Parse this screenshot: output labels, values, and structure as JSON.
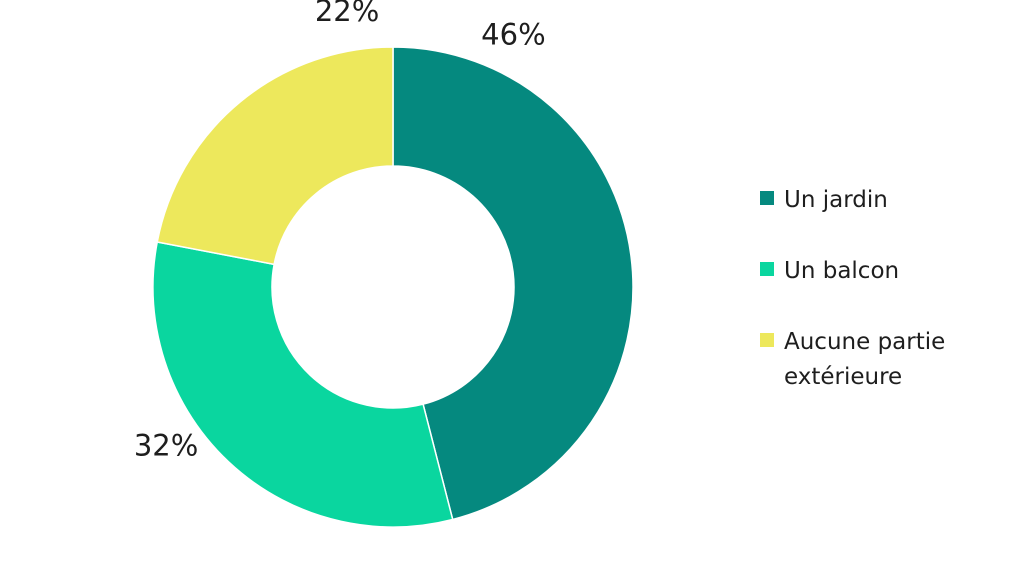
{
  "chart_data": {
    "type": "pie",
    "donut": true,
    "categories": [
      "Un jardin",
      "Un balcon",
      "Aucune partie extérieure"
    ],
    "values": [
      46,
      32,
      22
    ],
    "labels": [
      "46%",
      "32%",
      "22%"
    ],
    "colors": [
      "#05897f",
      "#0ad69f",
      "#ede85c"
    ],
    "legend_position": "right",
    "title": ""
  }
}
